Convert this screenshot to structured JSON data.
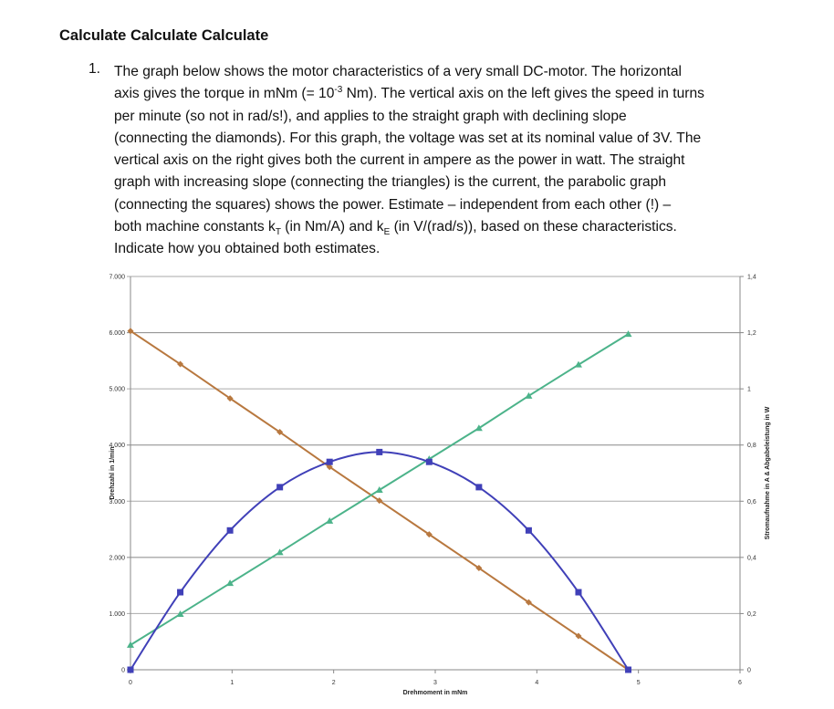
{
  "title": "Calculate Calculate Calculate",
  "question": {
    "number": "1.",
    "lines": [
      [
        "The graph below shows the motor characteristics of a very small DC-motor. The horizontal"
      ],
      [
        "axis gives the torque in mNm (= 10",
        "-3",
        " Nm). The vertical axis on the left gives the speed in turns"
      ],
      [
        "per minute (so not in rad/s!), and applies to the straight graph with declining slope"
      ],
      [
        "(connecting the diamonds). For this graph, the voltage was set at its nominal value of 3V. The"
      ],
      [
        "vertical axis on the right gives both the current in ampere as the power in watt. The straight"
      ],
      [
        "graph with increasing slope (connecting the triangles) is the current, the parabolic graph"
      ],
      [
        "(connecting the squares) shows the power. Estimate – independent from each other (!) –"
      ],
      [
        "both machine constants k",
        "T",
        " (in Nm/A) and k",
        "E",
        " (in V/(rad/s)), based on these characteristics."
      ],
      [
        "Indicate how you obtained both estimates."
      ]
    ]
  },
  "chart_data": {
    "type": "line",
    "xlabel": "Drehmoment in mNm",
    "ylabel": "Drehzahl in 1/min",
    "y2label": "Stromaufnahme in A  &  Abgabeleistung in W",
    "xlim": [
      0,
      6
    ],
    "ylim": [
      0,
      7000
    ],
    "y2lim": [
      0,
      1.4
    ],
    "xticks": [
      "0",
      "1",
      "2",
      "3",
      "4",
      "5",
      "6"
    ],
    "yticks": [
      "0",
      "1.000",
      "2.000",
      "3.000",
      "4.000",
      "5.000",
      "6.000",
      "7.000"
    ],
    "y2ticks": [
      "0",
      "0,2",
      "0,4",
      "0,6",
      "0,8",
      "1",
      "1,2",
      "1,4"
    ],
    "grid": true,
    "x": [
      0,
      0.49,
      0.98,
      1.47,
      1.96,
      2.45,
      2.94,
      3.43,
      3.92,
      4.41,
      4.9
    ],
    "series": [
      {
        "marker": "diamond",
        "axis": "left",
        "color": "#b8783f",
        "values": [
          6030,
          5440,
          4830,
          4230,
          3610,
          3010,
          2410,
          1810,
          1200,
          600,
          0
        ]
      },
      {
        "marker": "triangle",
        "axis": "right",
        "color": "#4cb38a",
        "values": [
          0.088,
          0.198,
          0.308,
          0.418,
          0.53,
          0.64,
          0.75,
          0.86,
          0.975,
          1.086,
          1.195
        ]
      },
      {
        "marker": "square",
        "axis": "right",
        "color": "#4040b8",
        "values": [
          0,
          0.276,
          0.496,
          0.65,
          0.74,
          0.775,
          0.74,
          0.65,
          0.496,
          0.276,
          0
        ]
      }
    ]
  }
}
